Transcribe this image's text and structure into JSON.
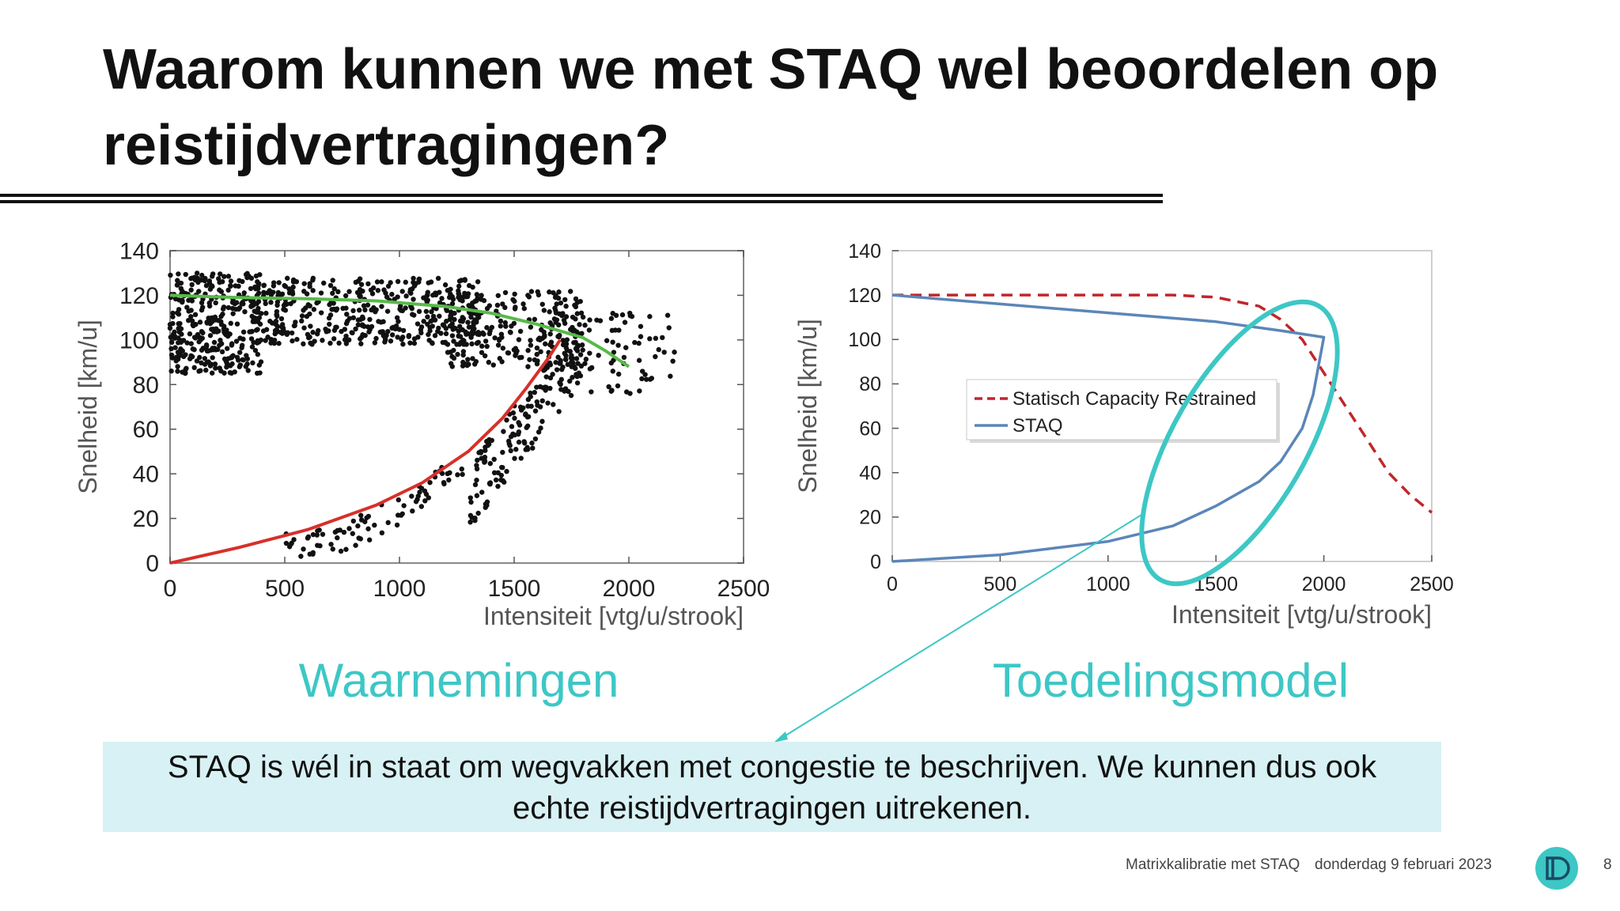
{
  "slide": {
    "title": "Waarom kunnen we met STAQ wel beoordelen op reistijdvertragingen?",
    "caption_left": "Waarnemingen",
    "caption_right": "Toedelingsmodel",
    "callout_line1": "STAQ is wél in staat om wegvakken met congestie te beschrijven. We kunnen dus ook",
    "callout_line2": "echte reistijdvertragingen uitrekenen.",
    "footer_title": "Matrixkalibratie met STAQ",
    "footer_date": "donderdag 9 februari 2023",
    "page_number": "8",
    "accent_color": "#3dc7c5",
    "logo_icon": "d-logo-icon"
  },
  "chart_data": [
    {
      "type": "scatter",
      "xlabel": "Intensiteit [vtg/u/strook]",
      "ylabel": "Snelheid [km/u]",
      "xlim": [
        0,
        2500
      ],
      "ylim": [
        0,
        140
      ],
      "xticks": [
        0,
        500,
        1000,
        1500,
        2000,
        2500
      ],
      "yticks": [
        0,
        20,
        40,
        60,
        80,
        100,
        120,
        140
      ],
      "grid": false,
      "series": [
        {
          "kind": "points",
          "color": "#111111",
          "clusters": [
            {
              "x": [
                0,
                400
              ],
              "y": [
                85,
                130
              ],
              "n": 330
            },
            {
              "x": [
                350,
                1350
              ],
              "y": [
                98,
                128
              ],
              "n": 420
            },
            {
              "x": [
                1200,
                1800
              ],
              "y": [
                88,
                122
              ],
              "n": 220
            },
            {
              "x": [
                1650,
                2200
              ],
              "y": [
                75,
                112
              ],
              "n": 90
            },
            {
              "x": [
                1300,
                1800
              ],
              "y": [
                30,
                95
              ],
              "n": 150
            },
            {
              "x": [
                500,
                1300
              ],
              "y": [
                8,
                48
              ],
              "n": 80
            }
          ]
        },
        {
          "kind": "line",
          "color": "#59b94a",
          "x": [
            0,
            300,
            600,
            900,
            1200,
            1400,
            1600,
            1800,
            1900,
            2000
          ],
          "y": [
            120,
            119,
            118.5,
            117.5,
            115,
            112,
            107,
            101,
            95,
            88
          ]
        },
        {
          "kind": "line",
          "color": "#d7302a",
          "x": [
            0,
            300,
            600,
            900,
            1100,
            1300,
            1450,
            1550,
            1650,
            1700
          ],
          "y": [
            0,
            7,
            15,
            26,
            36,
            50,
            65,
            78,
            92,
            100
          ]
        }
      ]
    },
    {
      "type": "line",
      "xlabel": "Intensiteit [vtg/u/strook]",
      "ylabel": "Snelheid [km/u]",
      "xlim": [
        0,
        2500
      ],
      "ylim": [
        0,
        140
      ],
      "xticks": [
        0,
        500,
        1000,
        1500,
        2000,
        2500
      ],
      "yticks": [
        0,
        20,
        40,
        60,
        80,
        100,
        120,
        140
      ],
      "grid": false,
      "legend_position": "center-left",
      "series": [
        {
          "name": "Statisch Capacity Restrained",
          "color": "#c0262b",
          "dash": true,
          "x": [
            0,
            500,
            1000,
            1300,
            1500,
            1700,
            1800,
            1900,
            2000,
            2100,
            2200,
            2300,
            2400,
            2500
          ],
          "y": [
            120,
            120,
            120,
            120,
            119,
            115,
            109,
            100,
            85,
            70,
            55,
            40,
            30,
            22
          ]
        },
        {
          "name": "STAQ",
          "color": "#5b86b8",
          "dash": false,
          "x": [
            0,
            500,
            1000,
            1500,
            1800,
            2000,
            1950,
            1900,
            1800,
            1700,
            1500,
            1300,
            1000,
            500,
            0
          ],
          "y": [
            120,
            116,
            112,
            108,
            104,
            101,
            75,
            60,
            45,
            36,
            25,
            16,
            9,
            3,
            0
          ]
        }
      ]
    }
  ]
}
